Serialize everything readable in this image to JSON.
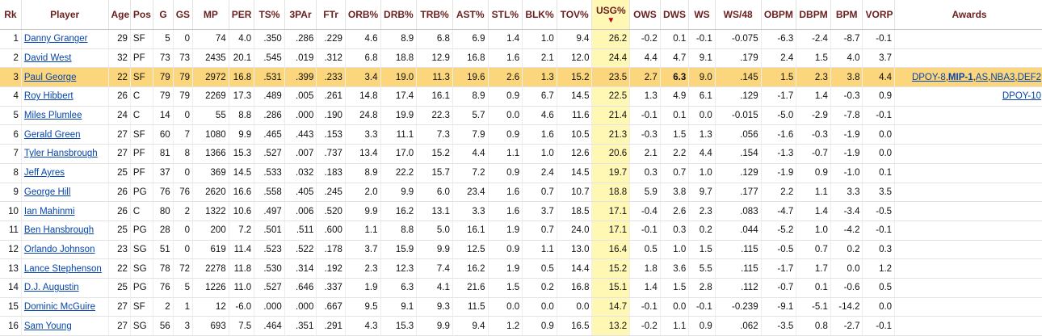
{
  "columns": [
    "Rk",
    "Player",
    "Age",
    "Pos",
    "G",
    "GS",
    "MP",
    "PER",
    "TS%",
    "3PAr",
    "FTr",
    "ORB%",
    "DRB%",
    "TRB%",
    "AST%",
    "STL%",
    "BLK%",
    "TOV%",
    "USG%",
    "OWS",
    "DWS",
    "WS",
    "WS/48",
    "OBPM",
    "DBPM",
    "BPM",
    "VORP",
    "Awards"
  ],
  "sort_indicator": "▼",
  "sort_column": "USG%",
  "highlight_color": "#fcd67c",
  "sort_column_color": "#fff8b5",
  "rows": [
    {
      "cells": [
        "1",
        "Danny Granger",
        "29",
        "SF",
        "5",
        "0",
        "74",
        "4.0",
        ".350",
        ".286",
        ".229",
        "4.6",
        "8.9",
        "6.8",
        "6.9",
        "1.4",
        "1.0",
        "9.4",
        "26.2",
        "-0.2",
        "0.1",
        "-0.1",
        "-0.075",
        "-6.3",
        "-2.4",
        "-8.7",
        "-0.1"
      ],
      "awards": []
    },
    {
      "cells": [
        "2",
        "David West",
        "32",
        "PF",
        "73",
        "73",
        "2435",
        "20.1",
        ".545",
        ".019",
        ".312",
        "6.8",
        "18.8",
        "12.9",
        "16.8",
        "1.6",
        "2.1",
        "12.0",
        "24.4",
        "4.4",
        "4.7",
        "9.1",
        ".179",
        "2.4",
        "1.5",
        "4.0",
        "3.7"
      ],
      "awards": []
    },
    {
      "cells": [
        "3",
        "Paul George",
        "22",
        "SF",
        "79",
        "79",
        "2972",
        "16.8",
        ".531",
        ".399",
        ".233",
        "3.4",
        "19.0",
        "11.3",
        "19.6",
        "2.6",
        "1.3",
        "15.2",
        "23.5",
        "2.7",
        "6.3",
        "9.0",
        ".145",
        "1.5",
        "2.3",
        "3.8",
        "4.4"
      ],
      "highlight": true,
      "bold_cell": "DWS",
      "awards": [
        "DPOY-8",
        "MIP-1",
        "AS",
        "NBA3",
        "DEF2"
      ],
      "awards_bold": "MIP-1"
    },
    {
      "cells": [
        "4",
        "Roy Hibbert",
        "26",
        "C",
        "79",
        "79",
        "2269",
        "17.3",
        ".489",
        ".005",
        ".261",
        "14.8",
        "17.4",
        "16.1",
        "8.9",
        "0.9",
        "6.7",
        "14.5",
        "22.5",
        "1.3",
        "4.9",
        "6.1",
        ".129",
        "-1.7",
        "1.4",
        "-0.3",
        "0.9"
      ],
      "awards": [
        "DPOY-10"
      ]
    },
    {
      "cells": [
        "5",
        "Miles Plumlee",
        "24",
        "C",
        "14",
        "0",
        "55",
        "8.8",
        ".286",
        ".000",
        ".190",
        "24.8",
        "19.9",
        "22.3",
        "5.7",
        "0.0",
        "4.6",
        "11.6",
        "21.4",
        "-0.1",
        "0.1",
        "0.0",
        "-0.015",
        "-5.0",
        "-2.9",
        "-7.8",
        "-0.1"
      ],
      "awards": []
    },
    {
      "cells": [
        "6",
        "Gerald Green",
        "27",
        "SF",
        "60",
        "7",
        "1080",
        "9.9",
        ".465",
        ".443",
        ".153",
        "3.3",
        "11.1",
        "7.3",
        "7.9",
        "0.9",
        "1.6",
        "10.5",
        "21.3",
        "-0.3",
        "1.5",
        "1.3",
        ".056",
        "-1.6",
        "-0.3",
        "-1.9",
        "0.0"
      ],
      "awards": []
    },
    {
      "cells": [
        "7",
        "Tyler Hansbrough",
        "27",
        "PF",
        "81",
        "8",
        "1366",
        "15.3",
        ".527",
        ".007",
        ".737",
        "13.4",
        "17.0",
        "15.2",
        "4.4",
        "1.1",
        "1.0",
        "12.6",
        "20.6",
        "2.1",
        "2.2",
        "4.4",
        ".154",
        "-1.3",
        "-0.7",
        "-1.9",
        "0.0"
      ],
      "awards": []
    },
    {
      "cells": [
        "8",
        "Jeff Ayres",
        "25",
        "PF",
        "37",
        "0",
        "369",
        "14.5",
        ".533",
        ".032",
        ".183",
        "8.9",
        "22.2",
        "15.7",
        "7.2",
        "0.9",
        "2.4",
        "14.5",
        "19.7",
        "0.3",
        "0.7",
        "1.0",
        ".129",
        "-1.9",
        "0.9",
        "-1.0",
        "0.1"
      ],
      "awards": []
    },
    {
      "cells": [
        "9",
        "George Hill",
        "26",
        "PG",
        "76",
        "76",
        "2620",
        "16.6",
        ".558",
        ".405",
        ".245",
        "2.0",
        "9.9",
        "6.0",
        "23.4",
        "1.6",
        "0.7",
        "10.7",
        "18.8",
        "5.9",
        "3.8",
        "9.7",
        ".177",
        "2.2",
        "1.1",
        "3.3",
        "3.5"
      ],
      "awards": []
    },
    {
      "cells": [
        "10",
        "Ian Mahinmi",
        "26",
        "C",
        "80",
        "2",
        "1322",
        "10.6",
        ".497",
        ".006",
        ".520",
        "9.9",
        "16.2",
        "13.1",
        "3.3",
        "1.6",
        "3.7",
        "18.5",
        "17.1",
        "-0.4",
        "2.6",
        "2.3",
        ".083",
        "-4.7",
        "1.4",
        "-3.4",
        "-0.5"
      ],
      "awards": []
    },
    {
      "cells": [
        "11",
        "Ben Hansbrough",
        "25",
        "PG",
        "28",
        "0",
        "200",
        "7.2",
        ".501",
        ".511",
        ".600",
        "1.1",
        "8.8",
        "5.0",
        "16.1",
        "1.9",
        "0.7",
        "24.0",
        "17.1",
        "-0.1",
        "0.3",
        "0.2",
        ".044",
        "-5.2",
        "1.0",
        "-4.2",
        "-0.1"
      ],
      "awards": []
    },
    {
      "cells": [
        "12",
        "Orlando Johnson",
        "23",
        "SG",
        "51",
        "0",
        "619",
        "11.4",
        ".523",
        ".522",
        ".178",
        "3.7",
        "15.9",
        "9.9",
        "12.5",
        "0.9",
        "1.1",
        "13.0",
        "16.4",
        "0.5",
        "1.0",
        "1.5",
        ".115",
        "-0.5",
        "0.7",
        "0.2",
        "0.3"
      ],
      "awards": []
    },
    {
      "cells": [
        "13",
        "Lance Stephenson",
        "22",
        "SG",
        "78",
        "72",
        "2278",
        "11.8",
        ".530",
        ".314",
        ".192",
        "2.3",
        "12.3",
        "7.4",
        "16.2",
        "1.9",
        "0.5",
        "14.4",
        "15.2",
        "1.8",
        "3.6",
        "5.5",
        ".115",
        "-1.7",
        "1.7",
        "0.0",
        "1.2"
      ],
      "awards": []
    },
    {
      "cells": [
        "14",
        "D.J. Augustin",
        "25",
        "PG",
        "76",
        "5",
        "1226",
        "11.0",
        ".527",
        ".646",
        ".337",
        "1.9",
        "6.3",
        "4.1",
        "21.6",
        "1.5",
        "0.2",
        "16.8",
        "15.1",
        "1.4",
        "1.5",
        "2.8",
        ".112",
        "-0.7",
        "0.1",
        "-0.6",
        "0.5"
      ],
      "awards": []
    },
    {
      "cells": [
        "15",
        "Dominic McGuire",
        "27",
        "SF",
        "2",
        "1",
        "12",
        "-6.0",
        ".000",
        ".000",
        ".667",
        "9.5",
        "9.1",
        "9.3",
        "11.5",
        "0.0",
        "0.0",
        "0.0",
        "14.7",
        "-0.1",
        "0.0",
        "-0.1",
        "-0.239",
        "-9.1",
        "-5.1",
        "-14.2",
        "0.0"
      ],
      "awards": []
    },
    {
      "cells": [
        "16",
        "Sam Young",
        "27",
        "SG",
        "56",
        "3",
        "693",
        "7.5",
        ".464",
        ".351",
        ".291",
        "4.3",
        "15.3",
        "9.9",
        "9.4",
        "1.2",
        "0.9",
        "16.5",
        "13.2",
        "-0.2",
        "1.1",
        "0.9",
        ".062",
        "-3.5",
        "0.8",
        "-2.7",
        "-0.1"
      ],
      "awards": []
    }
  ]
}
